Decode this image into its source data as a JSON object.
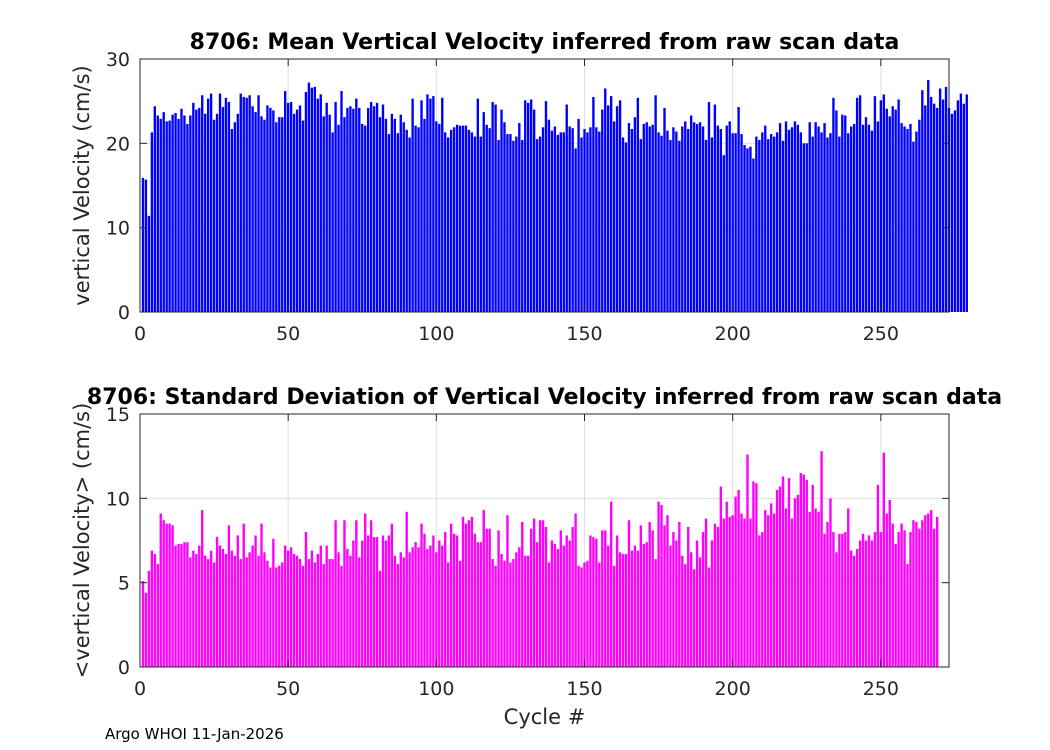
{
  "chart_data": [
    {
      "type": "bar",
      "title": "8706: Mean Vertical Velocity inferred from raw scan data",
      "xlabel": "",
      "ylabel": "vertical Velocity (cm/s)",
      "xlim": [
        0,
        273
      ],
      "ylim": [
        0,
        30
      ],
      "xticks": [
        0,
        50,
        100,
        150,
        200,
        250
      ],
      "yticks": [
        0,
        10,
        20,
        30
      ],
      "grid": true,
      "color": "#0000ff",
      "x_start": 1,
      "values": [
        15.9,
        15.7,
        11.4,
        21.3,
        24.4,
        23.3,
        22.9,
        23.7,
        22.6,
        22.7,
        23.4,
        23.6,
        22.9,
        24.1,
        23.3,
        22.3,
        23.3,
        24.8,
        24.0,
        24.2,
        25.7,
        23.5,
        25.3,
        25.9,
        22.8,
        23.5,
        25.9,
        24.3,
        25.4,
        24.9,
        21.7,
        22.5,
        23.5,
        25.9,
        25.5,
        25.4,
        25.7,
        24.4,
        23.7,
        25.7,
        23.2,
        22.8,
        24.5,
        24.2,
        23.9,
        22.5,
        23.1,
        23.1,
        26.2,
        24.8,
        24.9,
        23.5,
        24.0,
        24.5,
        22.7,
        26.1,
        27.2,
        26.6,
        26.7,
        25.3,
        25.8,
        23.2,
        24.8,
        23.4,
        21.3,
        24.9,
        22.2,
        26.2,
        23.1,
        24.2,
        24.4,
        24.1,
        25.3,
        24.2,
        22.3,
        22.1,
        24.2,
        24.9,
        24.4,
        24.8,
        23.1,
        24.6,
        22.9,
        21.1,
        23.5,
        22.9,
        21.2,
        23.4,
        22.5,
        21.6,
        20.7,
        25.3,
        22.1,
        21.9,
        25.1,
        22.9,
        25.8,
        25.3,
        25.6,
        22.6,
        22.3,
        25.4,
        21.3,
        20.7,
        21.6,
        21.9,
        22.2,
        22.1,
        22.1,
        22.1,
        21.6,
        21.3,
        20.8,
        25.3,
        20.8,
        23.7,
        22.2,
        21.8,
        24.9,
        24.6,
        20.4,
        24.0,
        22.5,
        21.1,
        21.1,
        20.3,
        20.8,
        22.4,
        20.4,
        25.1,
        24.8,
        25.2,
        24.0,
        20.5,
        20.8,
        21.9,
        25.0,
        22.8,
        21.5,
        22.0,
        21.0,
        21.3,
        21.3,
        24.6,
        22.0,
        21.8,
        19.4,
        22.9,
        20.7,
        21.7,
        21.3,
        21.9,
        25.5,
        21.9,
        21.4,
        24.0,
        26.5,
        24.5,
        25.6,
        22.6,
        24.4,
        25.1,
        20.7,
        20.1,
        22.4,
        21.7,
        23.1,
        25.4,
        20.5,
        22.3,
        22.5,
        22.0,
        22.2,
        25.7,
        21.3,
        20.9,
        24.2,
        21.5,
        20.4,
        21.9,
        21.4,
        20.3,
        22.0,
        22.6,
        21.7,
        23.3,
        22.5,
        22.3,
        22.5,
        22.0,
        20.4,
        24.9,
        20.7,
        24.6,
        22.1,
        21.7,
        18.6,
        22.1,
        22.6,
        21.2,
        21.2,
        24.3,
        21.1,
        19.8,
        19.4,
        19.6,
        18.2,
        20.8,
        20.4,
        21.3,
        22.1,
        20.5,
        21.1,
        20.8,
        21.3,
        22.4,
        20.3,
        22.6,
        21.6,
        21.9,
        22.6,
        22.2,
        21.3,
        20.0,
        20.0,
        22.5,
        20.8,
        22.5,
        22.0,
        21.3,
        22.4,
        20.7,
        21.2,
        25.4,
        23.9,
        20.8,
        23.4,
        23.3,
        21.2,
        22.0,
        22.3,
        25.4,
        25.7,
        22.2,
        23.1,
        22.2,
        21.5,
        25.6,
        22.6,
        25.1,
        25.8,
        24.1,
        23.2,
        24.4,
        24.0,
        25.2,
        22.4,
        22.0,
        21.7,
        22.3,
        20.2,
        21.4,
        22.8,
        26.3,
        24.5,
        27.5,
        25.5,
        24.7,
        24.2,
        26.5,
        25.2,
        26.7,
        24.2,
        23.5,
        23.9,
        25.1,
        25.9,
        24.7,
        25.8
      ]
    },
    {
      "type": "bar",
      "title": "8706: Standard Deviation of Vertical Velocity inferred from raw scan data",
      "xlabel": "Cycle #",
      "ylabel": "<vertical Velocity> (cm/s)",
      "xlim": [
        0,
        273
      ],
      "ylim": [
        0,
        15
      ],
      "xticks": [
        0,
        50,
        100,
        150,
        200,
        250
      ],
      "yticks": [
        0,
        5,
        10,
        15
      ],
      "grid": true,
      "color": "#ff00ff",
      "x_start": 1,
      "values": [
        5.1,
        4.4,
        5.7,
        6.9,
        6.7,
        6.1,
        9.1,
        8.7,
        8.5,
        8.5,
        8.4,
        7.2,
        7.3,
        7.3,
        7.4,
        7.4,
        6.5,
        6.9,
        6.7,
        7.2,
        9.3,
        6.6,
        6.4,
        6.9,
        6.2,
        7.7,
        7.2,
        7.0,
        6.7,
        8.4,
        6.9,
        6.6,
        7.8,
        6.4,
        8.5,
        6.5,
        6.8,
        7.2,
        7.8,
        6.6,
        8.5,
        6.8,
        6.3,
        5.9,
        7.6,
        5.9,
        6.0,
        6.2,
        7.2,
        6.9,
        7.1,
        6.7,
        6.6,
        6.4,
        6.0,
        8.0,
        6.4,
        6.9,
        6.2,
        6.7,
        7.2,
        6.1,
        7.2,
        6.4,
        6.4,
        8.7,
        6.8,
        6.0,
        8.7,
        7.0,
        6.6,
        7.5,
        8.7,
        6.5,
        7.5,
        9.1,
        7.8,
        8.7,
        7.7,
        7.7,
        5.7,
        7.8,
        7.5,
        7.8,
        8.5,
        6.6,
        6.1,
        6.8,
        6.5,
        9.2,
        6.8,
        7.1,
        7.4,
        7.1,
        8.5,
        7.9,
        7.0,
        7.2,
        7.8,
        6.8,
        7.5,
        7.2,
        8.0,
        6.2,
        8.5,
        7.9,
        7.8,
        6.3,
        8.9,
        8.5,
        8.7,
        8.9,
        7.9,
        7.4,
        7.4,
        9.3,
        8.2,
        8.2,
        6.4,
        6.0,
        8.1,
        6.7,
        6.3,
        9.0,
        6.2,
        6.4,
        6.8,
        7.1,
        8.6,
        6.6,
        6.6,
        8.2,
        8.8,
        7.4,
        8.7,
        8.7,
        8.3,
        6.2,
        7.5,
        7.3,
        7.0,
        8.1,
        7.2,
        7.8,
        7.5,
        8.3,
        9.1,
        6.0,
        5.9,
        6.2,
        6.3,
        7.8,
        7.7,
        7.6,
        6.2,
        8.1,
        8.1,
        7.2,
        9.8,
        6.0,
        7.8,
        6.8,
        6.7,
        6.7,
        8.7,
        6.9,
        7.2,
        6.9,
        8.4,
        7.3,
        7.4,
        8.6,
        8.1,
        6.4,
        9.8,
        9.6,
        8.4,
        9.0,
        7.2,
        8.0,
        7.5,
        8.6,
        6.6,
        6.1,
        8.3,
        6.8,
        5.8,
        7.5,
        6.5,
        8.0,
        8.8,
        5.9,
        7.5,
        8.5,
        8.3,
        10.7,
        8.8,
        9.8,
        8.9,
        9.0,
        10.1,
        10.5,
        9.1,
        8.8,
        12.6,
        8.8,
        11.0,
        10.9,
        7.8,
        8.0,
        9.3,
        9.0,
        9.7,
        9.1,
        10.5,
        10.7,
        11.3,
        9.4,
        11.2,
        8.8,
        10.0,
        10.2,
        11.5,
        11.4,
        11.1,
        9.2,
        10.8,
        9.4,
        9.2,
        12.8,
        7.9,
        8.6,
        10.0,
        8.0,
        6.8,
        7.9,
        7.9,
        8.0,
        9.4,
        6.9,
        6.6,
        7.0,
        7.5,
        7.9,
        7.5,
        7.8,
        7.5,
        8.0,
        10.8,
        8.0,
        12.7,
        9.1,
        9.9,
        8.5,
        7.3,
        8.0,
        8.5,
        8.1,
        6.1,
        8.0,
        8.7,
        8.6,
        8.2,
        8.7,
        9.0,
        9.1,
        9.3,
        8.2,
        8.9
      ]
    }
  ],
  "footer": {
    "text": "Argo WHOI 11-Jan-2026"
  }
}
